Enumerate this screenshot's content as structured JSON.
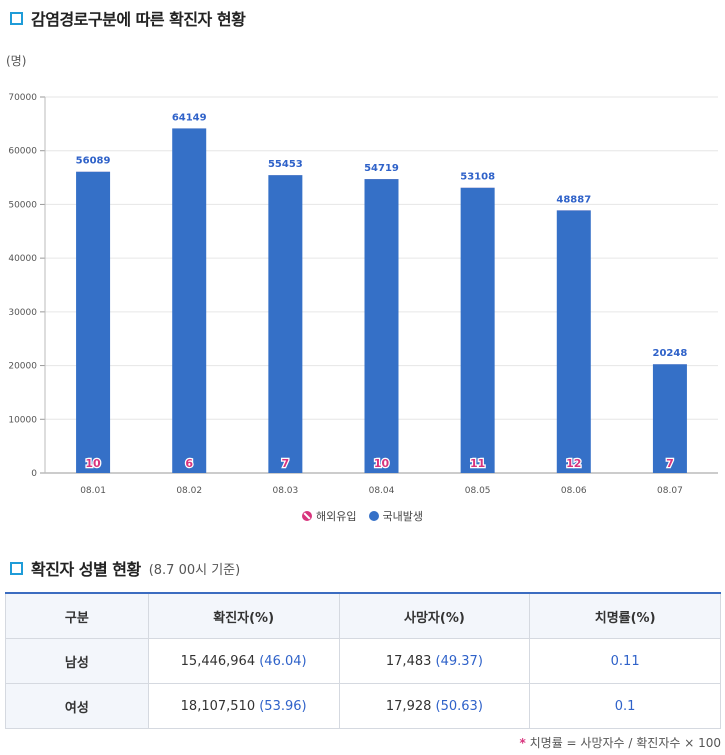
{
  "section1": {
    "title": "감염경로구분에 따른 확진자 현황"
  },
  "unit": "(명)",
  "chart_data": {
    "type": "bar",
    "categories": [
      "08.01",
      "08.02",
      "08.03",
      "08.04",
      "08.05",
      "08.06",
      "08.07"
    ],
    "series": [
      {
        "name": "해외유입",
        "values": [
          10,
          6,
          7,
          10,
          11,
          12,
          7
        ],
        "color": "#d8347d"
      },
      {
        "name": "국내발생",
        "values": [
          56089,
          64149,
          55453,
          54719,
          53108,
          48887,
          20248
        ],
        "color": "#3570c7"
      }
    ],
    "yticks": [
      "0",
      "10000",
      "20000",
      "30000",
      "40000",
      "50000",
      "60000",
      "70000"
    ],
    "ylim": [
      0,
      70000
    ],
    "grid": true,
    "legend_position": "bottom"
  },
  "section2": {
    "title": "확진자 성별 현황",
    "subtitle": "(8.7 00시 기준)"
  },
  "table": {
    "headers": [
      "구분",
      "확진자(%)",
      "사망자(%)",
      "치명률(%)"
    ],
    "rows": [
      {
        "label": "남성",
        "cases": "15,446,964",
        "cases_pct": "(46.04)",
        "deaths": "17,483",
        "deaths_pct": "(49.37)",
        "fatality": "0.11"
      },
      {
        "label": "여성",
        "cases": "18,107,510",
        "cases_pct": "(53.96)",
        "deaths": "17,928",
        "deaths_pct": "(50.63)",
        "fatality": "0.1"
      }
    ]
  },
  "note": {
    "star": "*",
    "text": "치명률 = 사망자수 / 확진자수 × 100"
  }
}
